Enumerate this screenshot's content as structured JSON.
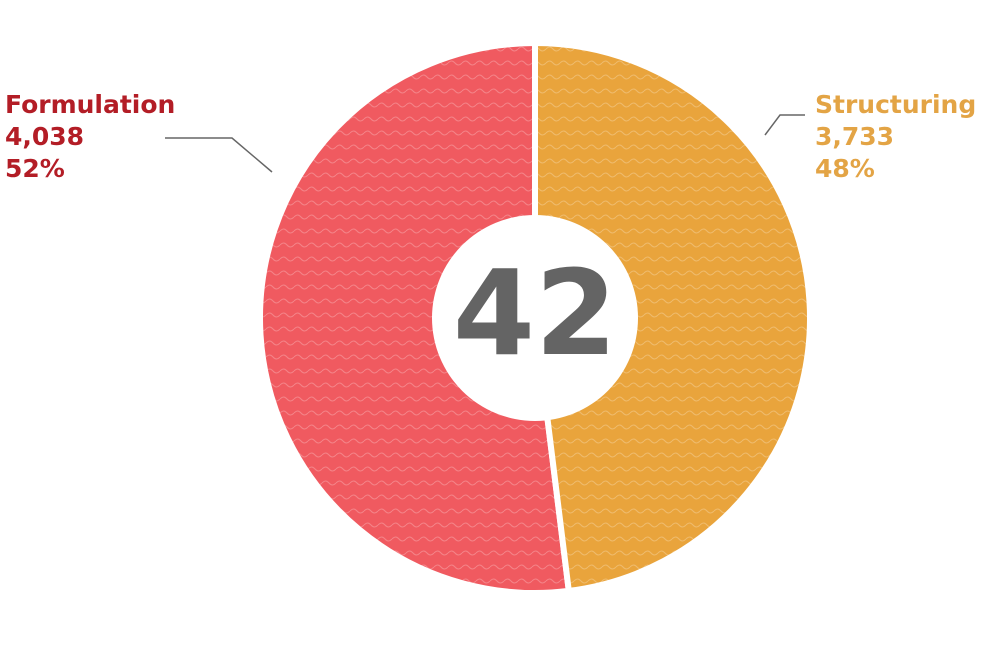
{
  "chart_data": {
    "type": "donut",
    "categories": [
      "Formulation",
      "Structuring"
    ],
    "values": [
      4038,
      3733
    ],
    "value_labels": [
      "4,038",
      "3,733"
    ],
    "percent_labels": [
      "52%",
      "48%"
    ],
    "colors": [
      "#f05a60",
      "#e9a43c"
    ],
    "label_colors": [
      "#b31d26",
      "#e3a445"
    ],
    "center_value": 42
  }
}
